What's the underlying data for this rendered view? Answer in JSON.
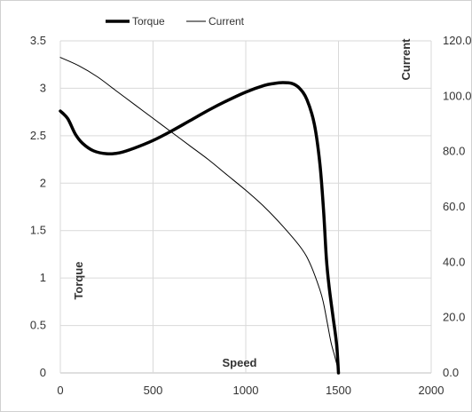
{
  "chart_data": {
    "type": "line",
    "title": "",
    "xlabel": "Speed",
    "ylabel": "Torque",
    "y2label": "Current",
    "xlim": [
      0,
      2000
    ],
    "ylim": [
      0,
      3.5
    ],
    "y2lim": [
      0,
      120
    ],
    "x_ticks": [
      0,
      500,
      1000,
      1500,
      2000
    ],
    "x_tick_labels": [
      "0",
      "500",
      "1000",
      "1500",
      "2000"
    ],
    "y_ticks": [
      0,
      0.5,
      1,
      1.5,
      2,
      2.5,
      3,
      3.5
    ],
    "y_tick_labels": [
      "0",
      "0.5",
      "1",
      "1.5",
      "2",
      "2.5",
      "3",
      "3.5"
    ],
    "y2_ticks": [
      0,
      20,
      40,
      60,
      80,
      100,
      120
    ],
    "y2_tick_labels": [
      "0.0",
      "20.0",
      "40.0",
      "60.0",
      "80.0",
      "100.0",
      "120.0"
    ],
    "grid": true,
    "legend": "top-left",
    "series": [
      {
        "name": "Torque",
        "axis": "left",
        "color": "#000000",
        "line_style": "thick",
        "points": [
          [
            0,
            2.76
          ],
          [
            40,
            2.68
          ],
          [
            80,
            2.52
          ],
          [
            120,
            2.42
          ],
          [
            180,
            2.34
          ],
          [
            250,
            2.31
          ],
          [
            320,
            2.32
          ],
          [
            400,
            2.37
          ],
          [
            500,
            2.45
          ],
          [
            600,
            2.55
          ],
          [
            700,
            2.66
          ],
          [
            800,
            2.77
          ],
          [
            900,
            2.87
          ],
          [
            1000,
            2.96
          ],
          [
            1100,
            3.03
          ],
          [
            1150,
            3.05
          ],
          [
            1200,
            3.06
          ],
          [
            1250,
            3.05
          ],
          [
            1290,
            3.0
          ],
          [
            1330,
            2.88
          ],
          [
            1370,
            2.62
          ],
          [
            1400,
            2.2
          ],
          [
            1420,
            1.7
          ],
          [
            1435,
            1.2
          ],
          [
            1450,
            0.9
          ],
          [
            1470,
            0.6
          ],
          [
            1490,
            0.3
          ],
          [
            1500,
            0.0
          ]
        ]
      },
      {
        "name": "Current",
        "axis": "right",
        "color": "#000000",
        "line_style": "thin",
        "points": [
          [
            0,
            114
          ],
          [
            100,
            111
          ],
          [
            200,
            107
          ],
          [
            300,
            102
          ],
          [
            400,
            97
          ],
          [
            500,
            92
          ],
          [
            600,
            87
          ],
          [
            700,
            82
          ],
          [
            800,
            77
          ],
          [
            900,
            71.5
          ],
          [
            1000,
            66
          ],
          [
            1100,
            60
          ],
          [
            1200,
            53
          ],
          [
            1300,
            45
          ],
          [
            1350,
            39
          ],
          [
            1400,
            30
          ],
          [
            1420,
            25
          ],
          [
            1440,
            18
          ],
          [
            1460,
            11
          ],
          [
            1480,
            6
          ],
          [
            1495,
            2
          ],
          [
            1500,
            0
          ]
        ]
      }
    ]
  }
}
